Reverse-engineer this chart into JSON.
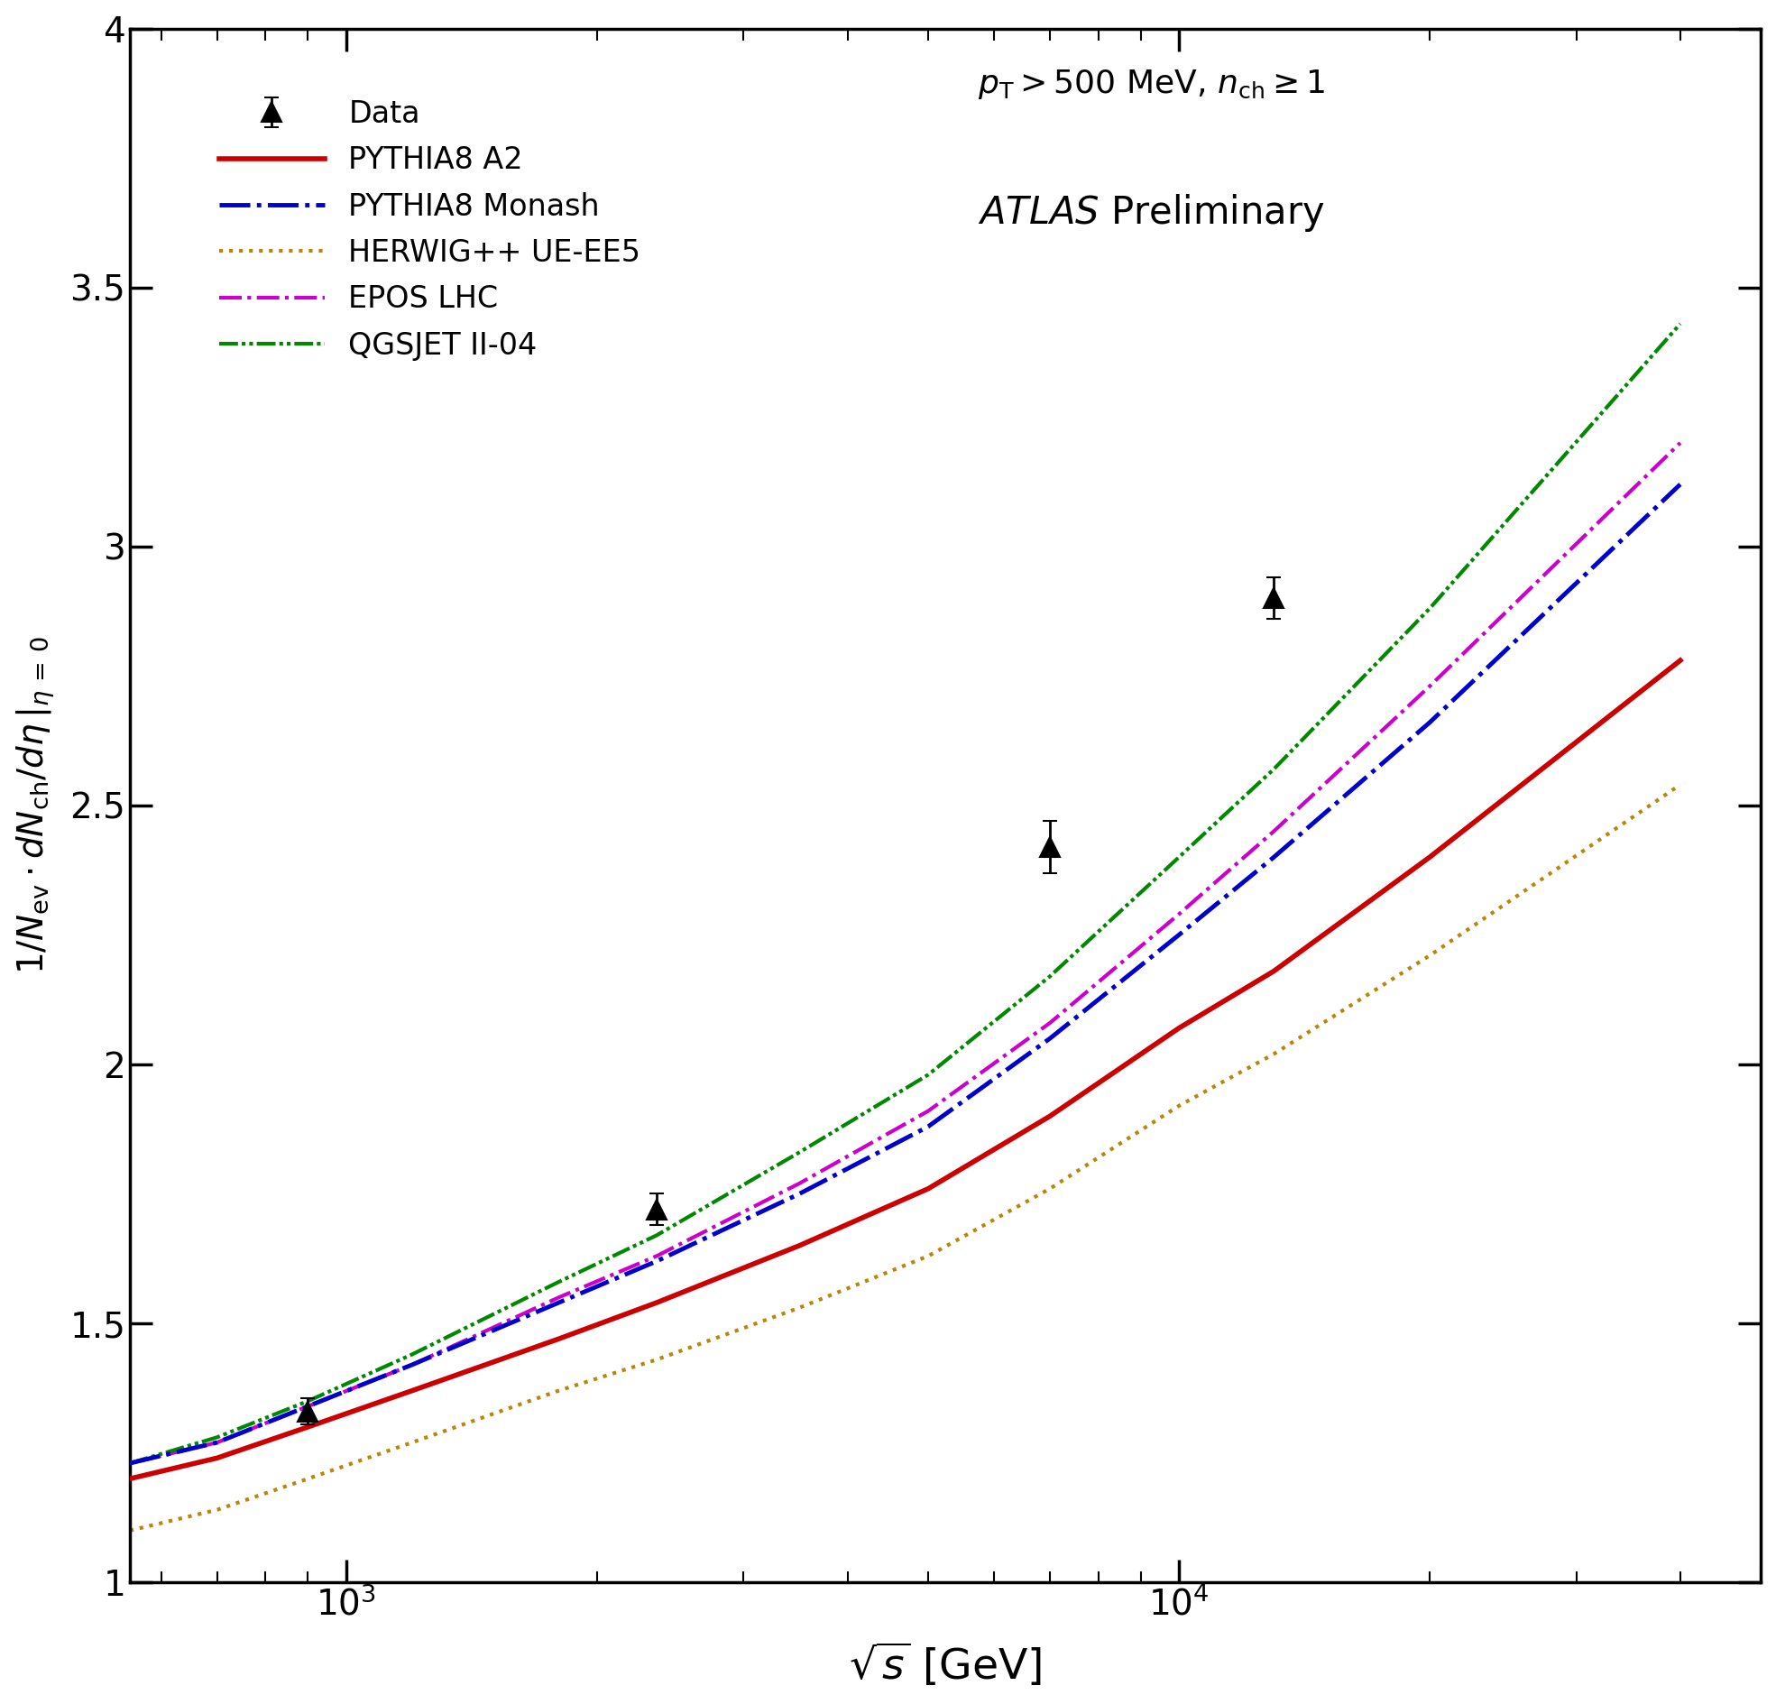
{
  "xlabel": "$\\sqrt{s}$ [GeV]",
  "ylabel": "$1/N_{\\mathrm{ev}} \\cdot dN_{\\mathrm{ch}} / d\\eta\\,|_{\\eta\\,=\\,0}$",
  "xlim": [
    550,
    50000
  ],
  "ylim": [
    1.0,
    4.0
  ],
  "annotation_line1": "$p_{\\mathrm{T}} > 500$ MeV, $n_{\\mathrm{ch}} \\geq 1$",
  "data_points": {
    "x": [
      900,
      2360,
      7000,
      13000
    ],
    "y": [
      1.33,
      1.72,
      2.42,
      2.9
    ],
    "yerr": [
      0.025,
      0.03,
      0.05,
      0.04
    ]
  },
  "pythia8_a2": {
    "x": [
      550,
      700,
      900,
      1200,
      1800,
      2360,
      3500,
      5000,
      7000,
      10000,
      13000,
      20000,
      40000
    ],
    "y": [
      1.2,
      1.24,
      1.3,
      1.37,
      1.47,
      1.54,
      1.65,
      1.76,
      1.9,
      2.07,
      2.18,
      2.4,
      2.78
    ],
    "color": "#cc0000",
    "linestyle": "solid",
    "linewidth": 4.0,
    "label": "PYTHIA8 A2"
  },
  "pythia8_monash": {
    "x": [
      550,
      700,
      900,
      1200,
      1800,
      2360,
      3500,
      5000,
      7000,
      10000,
      13000,
      20000,
      40000
    ],
    "y": [
      1.23,
      1.27,
      1.34,
      1.42,
      1.54,
      1.62,
      1.75,
      1.88,
      2.05,
      2.25,
      2.4,
      2.66,
      3.12
    ],
    "color": "#0000cc",
    "linewidth": 3.5,
    "label": "PYTHIA8 Monash"
  },
  "herwig_ue_ee5": {
    "x": [
      550,
      700,
      900,
      1200,
      1800,
      2360,
      3500,
      5000,
      7000,
      10000,
      13000,
      20000,
      40000
    ],
    "y": [
      1.1,
      1.14,
      1.2,
      1.27,
      1.37,
      1.43,
      1.53,
      1.63,
      1.76,
      1.92,
      2.02,
      2.21,
      2.54
    ],
    "color": "#b8860b",
    "linestyle": "dotted",
    "linewidth": 3.0,
    "label": "HERWIG++ UE-EE5"
  },
  "epos_lhc": {
    "x": [
      550,
      700,
      900,
      1200,
      1800,
      2360,
      3500,
      5000,
      7000,
      10000,
      13000,
      20000,
      40000
    ],
    "y": [
      1.23,
      1.27,
      1.34,
      1.42,
      1.55,
      1.63,
      1.77,
      1.91,
      2.08,
      2.29,
      2.45,
      2.73,
      3.2
    ],
    "color": "#cc00cc",
    "linewidth": 3.0,
    "label": "EPOS LHC"
  },
  "qgsjet_ii04": {
    "x": [
      550,
      700,
      900,
      1200,
      1800,
      2360,
      3500,
      5000,
      7000,
      10000,
      13000,
      20000,
      40000
    ],
    "y": [
      1.23,
      1.28,
      1.35,
      1.44,
      1.58,
      1.67,
      1.83,
      1.98,
      2.17,
      2.4,
      2.57,
      2.88,
      3.43
    ],
    "color": "#008800",
    "linewidth": 3.0,
    "label": "QGSJET II-04"
  }
}
